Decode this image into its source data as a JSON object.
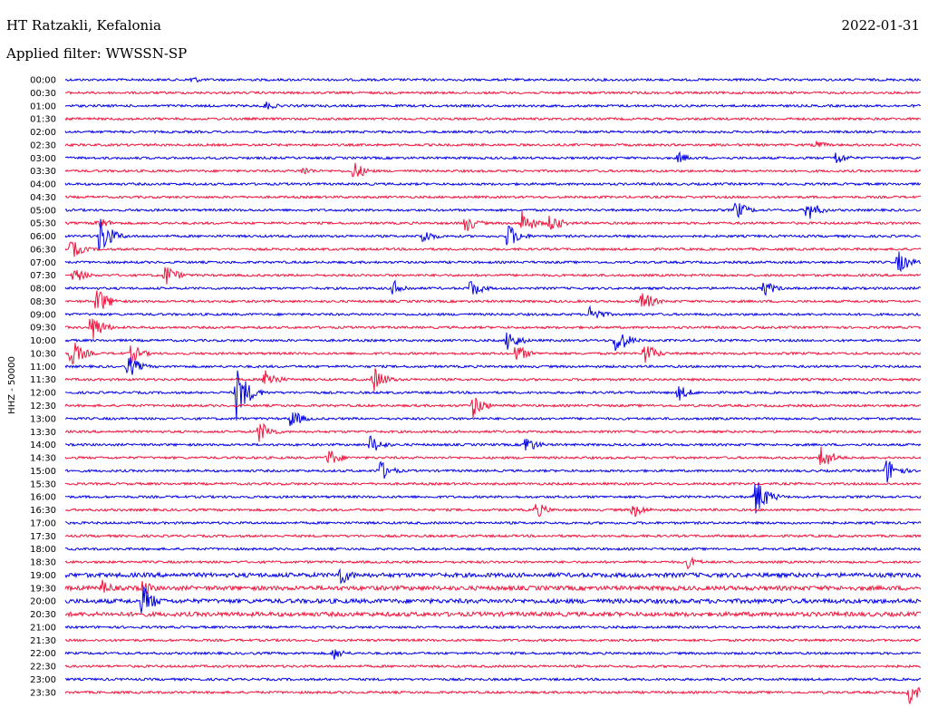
{
  "header": {
    "station": "HT Ratzakli, Kefalonia",
    "date": "2022-01-31",
    "filter": "Applied filter: WWSSN-SP"
  },
  "chart_data": {
    "type": "line",
    "title": "HT Ratzakli, Kefalonia",
    "ylabel": "HHZ - 50000",
    "xlabel": "",
    "colors": [
      "#0000e6",
      "#f0143c"
    ],
    "grid": false,
    "legend": "none",
    "tick_labels": [
      "00:00",
      "00:30",
      "01:00",
      "01:30",
      "02:00",
      "02:30",
      "03:00",
      "03:30",
      "04:00",
      "04:30",
      "05:00",
      "05:30",
      "06:00",
      "06:30",
      "07:00",
      "07:30",
      "08:00",
      "08:30",
      "09:00",
      "09:30",
      "10:00",
      "10:30",
      "11:00",
      "11:30",
      "12:00",
      "12:30",
      "13:00",
      "13:30",
      "14:00",
      "14:30",
      "15:00",
      "15:30",
      "16:00",
      "16:30",
      "17:00",
      "17:30",
      "18:00",
      "18:30",
      "19:00",
      "19:30",
      "20:00",
      "20:30",
      "21:00",
      "21:30",
      "22:00",
      "22:30",
      "23:00",
      "23:30"
    ],
    "x_range_minutes": [
      0,
      30
    ],
    "events": [
      {
        "trace": 0,
        "minute": 4.4,
        "amplitude": 5
      },
      {
        "trace": 2,
        "minute": 7.0,
        "amplitude": 6
      },
      {
        "trace": 5,
        "minute": 26.3,
        "amplitude": 6
      },
      {
        "trace": 6,
        "minute": 21.5,
        "amplitude": 7
      },
      {
        "trace": 6,
        "minute": 27.0,
        "amplitude": 9
      },
      {
        "trace": 7,
        "minute": 8.3,
        "amplitude": 6
      },
      {
        "trace": 7,
        "minute": 10.1,
        "amplitude": 12
      },
      {
        "trace": 10,
        "minute": 23.5,
        "amplitude": 12
      },
      {
        "trace": 10,
        "minute": 26.0,
        "amplitude": 14
      },
      {
        "trace": 11,
        "minute": 1.1,
        "amplitude": 10
      },
      {
        "trace": 11,
        "minute": 14.0,
        "amplitude": 12
      },
      {
        "trace": 11,
        "minute": 16.0,
        "amplitude": 16
      },
      {
        "trace": 11,
        "minute": 17.0,
        "amplitude": 12
      },
      {
        "trace": 12,
        "minute": 1.2,
        "amplitude": 24
      },
      {
        "trace": 12,
        "minute": 12.5,
        "amplitude": 10
      },
      {
        "trace": 12,
        "minute": 15.5,
        "amplitude": 16
      },
      {
        "trace": 13,
        "minute": 0.2,
        "amplitude": 12
      },
      {
        "trace": 14,
        "minute": 29.2,
        "amplitude": 14
      },
      {
        "trace": 15,
        "minute": 0.3,
        "amplitude": 10
      },
      {
        "trace": 15,
        "minute": 3.5,
        "amplitude": 14
      },
      {
        "trace": 16,
        "minute": 11.5,
        "amplitude": 10
      },
      {
        "trace": 16,
        "minute": 14.2,
        "amplitude": 12
      },
      {
        "trace": 16,
        "minute": 24.5,
        "amplitude": 10
      },
      {
        "trace": 17,
        "minute": 1.1,
        "amplitude": 18
      },
      {
        "trace": 17,
        "minute": 20.2,
        "amplitude": 14
      },
      {
        "trace": 18,
        "minute": 18.4,
        "amplitude": 12
      },
      {
        "trace": 19,
        "minute": 0.9,
        "amplitude": 18
      },
      {
        "trace": 20,
        "minute": 15.5,
        "amplitude": 14
      },
      {
        "trace": 20,
        "minute": 19.3,
        "amplitude": 18
      },
      {
        "trace": 21,
        "minute": 0.2,
        "amplitude": 18
      },
      {
        "trace": 21,
        "minute": 2.3,
        "amplitude": 12
      },
      {
        "trace": 21,
        "minute": 15.8,
        "amplitude": 12
      },
      {
        "trace": 21,
        "minute": 20.3,
        "amplitude": 14
      },
      {
        "trace": 22,
        "minute": 2.2,
        "amplitude": 14
      },
      {
        "trace": 23,
        "minute": 7.0,
        "amplitude": 14
      },
      {
        "trace": 23,
        "minute": 10.8,
        "amplitude": 16
      },
      {
        "trace": 24,
        "minute": 6.0,
        "amplitude": 32
      },
      {
        "trace": 24,
        "minute": 21.5,
        "amplitude": 10
      },
      {
        "trace": 25,
        "minute": 14.3,
        "amplitude": 14
      },
      {
        "trace": 26,
        "minute": 7.9,
        "amplitude": 12
      },
      {
        "trace": 27,
        "minute": 6.8,
        "amplitude": 14
      },
      {
        "trace": 28,
        "minute": 10.7,
        "amplitude": 12
      },
      {
        "trace": 28,
        "minute": 16.1,
        "amplitude": 12
      },
      {
        "trace": 29,
        "minute": 9.2,
        "amplitude": 12
      },
      {
        "trace": 29,
        "minute": 26.5,
        "amplitude": 16
      },
      {
        "trace": 30,
        "minute": 11.0,
        "amplitude": 14
      },
      {
        "trace": 30,
        "minute": 28.8,
        "amplitude": 16
      },
      {
        "trace": 32,
        "minute": 24.2,
        "amplitude": 24
      },
      {
        "trace": 33,
        "minute": 16.5,
        "amplitude": 10
      },
      {
        "trace": 33,
        "minute": 19.9,
        "amplitude": 10
      },
      {
        "trace": 37,
        "minute": 21.8,
        "amplitude": 8
      },
      {
        "trace": 38,
        "minute": 9.6,
        "amplitude": 14
      },
      {
        "trace": 39,
        "minute": 1.3,
        "amplitude": 10
      },
      {
        "trace": 39,
        "minute": 2.7,
        "amplitude": 10
      },
      {
        "trace": 40,
        "minute": 2.7,
        "amplitude": 20
      },
      {
        "trace": 44,
        "minute": 9.4,
        "amplitude": 8
      },
      {
        "trace": 47,
        "minute": 29.6,
        "amplitude": 14
      }
    ]
  }
}
